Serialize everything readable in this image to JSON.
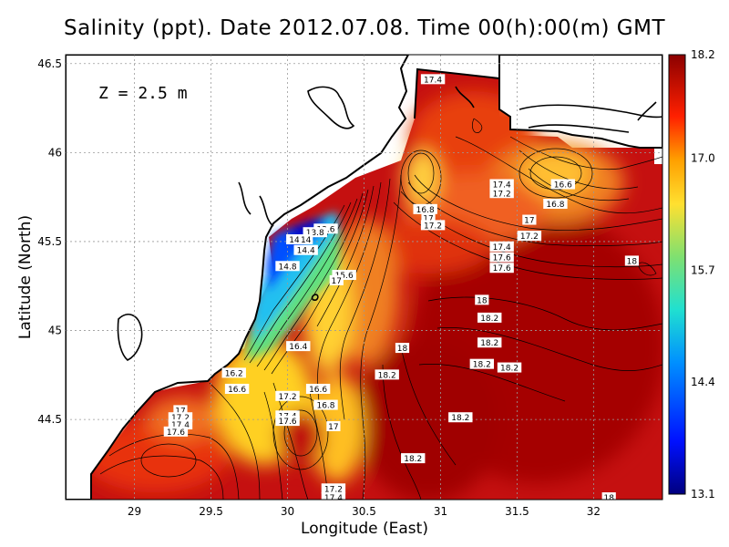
{
  "title": "Salinity (ppt). Date 2012.07.08. Time 00(h):00(m) GMT",
  "depth_label": "Z = 2.5 m",
  "xlabel": "Longitude (East)",
  "ylabel": "Latitude (North)",
  "colors": {
    "land": "#ffffff",
    "coast": "#000000",
    "grid": "#9a9a9a",
    "salinity_low": "#00007f",
    "salinity_high": "#8b0000"
  },
  "chart_data": {
    "type": "heatmap",
    "xlim": [
      28.55,
      32.45
    ],
    "ylim": [
      44.05,
      46.55
    ],
    "x_ticks": [
      {
        "value": 29,
        "label": "29"
      },
      {
        "value": 29.5,
        "label": "29.5"
      },
      {
        "value": 30,
        "label": "30"
      },
      {
        "value": 30.5,
        "label": "30.5"
      },
      {
        "value": 31,
        "label": "31"
      },
      {
        "value": 31.5,
        "label": "31.5"
      },
      {
        "value": 32,
        "label": "32"
      }
    ],
    "y_ticks": [
      {
        "value": 44.5,
        "label": "44.5"
      },
      {
        "value": 45,
        "label": "45"
      },
      {
        "value": 45.5,
        "label": "45.5"
      },
      {
        "value": 46,
        "label": "46"
      },
      {
        "value": 46.5,
        "label": "46.5"
      }
    ],
    "grid": true,
    "colorbar": {
      "range": [
        13.1,
        18.2
      ],
      "tick_labels": [
        {
          "value": 18.2,
          "label": "18.2"
        },
        {
          "value": 17.0,
          "label": "17.0"
        },
        {
          "value": 15.7,
          "label": "15.7"
        },
        {
          "value": 14.4,
          "label": "14.4"
        },
        {
          "value": 13.1,
          "label": "13.1"
        }
      ]
    },
    "contour_labels": [
      {
        "lon": 30.95,
        "lat": 46.41,
        "text": "17.4"
      },
      {
        "lon": 31.4,
        "lat": 45.82,
        "text": "17.4"
      },
      {
        "lon": 31.4,
        "lat": 45.77,
        "text": "17.2"
      },
      {
        "lon": 31.8,
        "lat": 45.82,
        "text": "16.6"
      },
      {
        "lon": 31.75,
        "lat": 45.71,
        "text": "16.8"
      },
      {
        "lon": 31.58,
        "lat": 45.62,
        "text": "17"
      },
      {
        "lon": 31.58,
        "lat": 45.53,
        "text": "17.2"
      },
      {
        "lon": 31.4,
        "lat": 45.47,
        "text": "17.4"
      },
      {
        "lon": 31.4,
        "lat": 45.41,
        "text": "17.6"
      },
      {
        "lon": 31.4,
        "lat": 45.35,
        "text": "17.6"
      },
      {
        "lon": 32.25,
        "lat": 45.39,
        "text": "18"
      },
      {
        "lon": 30.9,
        "lat": 45.68,
        "text": "16.8"
      },
      {
        "lon": 30.92,
        "lat": 45.63,
        "text": "17"
      },
      {
        "lon": 30.95,
        "lat": 45.59,
        "text": "17.2"
      },
      {
        "lon": 30.37,
        "lat": 45.31,
        "text": "15.6"
      },
      {
        "lon": 30.32,
        "lat": 45.28,
        "text": "17"
      },
      {
        "lon": 30.25,
        "lat": 45.57,
        "text": "13.6"
      },
      {
        "lon": 30.18,
        "lat": 45.55,
        "text": "13.8"
      },
      {
        "lon": 30.07,
        "lat": 45.51,
        "text": "14.6"
      },
      {
        "lon": 30.12,
        "lat": 45.51,
        "text": "14"
      },
      {
        "lon": 30.12,
        "lat": 45.45,
        "text": "14.4"
      },
      {
        "lon": 30.0,
        "lat": 45.36,
        "text": "14.8"
      },
      {
        "lon": 31.27,
        "lat": 45.17,
        "text": "18"
      },
      {
        "lon": 31.32,
        "lat": 45.07,
        "text": "18.2"
      },
      {
        "lon": 31.32,
        "lat": 44.93,
        "text": "18.2"
      },
      {
        "lon": 30.75,
        "lat": 44.9,
        "text": "18"
      },
      {
        "lon": 31.27,
        "lat": 44.81,
        "text": "18.2"
      },
      {
        "lon": 31.45,
        "lat": 44.79,
        "text": "18.2"
      },
      {
        "lon": 30.65,
        "lat": 44.75,
        "text": "18.2"
      },
      {
        "lon": 30.07,
        "lat": 44.91,
        "text": "16.4"
      },
      {
        "lon": 29.65,
        "lat": 44.76,
        "text": "16.2"
      },
      {
        "lon": 29.67,
        "lat": 44.67,
        "text": "16.6"
      },
      {
        "lon": 30.2,
        "lat": 44.67,
        "text": "16.6"
      },
      {
        "lon": 30.25,
        "lat": 44.58,
        "text": "16.8"
      },
      {
        "lon": 30.0,
        "lat": 44.63,
        "text": "17.2"
      },
      {
        "lon": 30.0,
        "lat": 44.52,
        "text": "17.4"
      },
      {
        "lon": 30.0,
        "lat": 44.49,
        "text": "17.6"
      },
      {
        "lon": 30.3,
        "lat": 44.46,
        "text": "17"
      },
      {
        "lon": 31.13,
        "lat": 44.51,
        "text": "18.2"
      },
      {
        "lon": 30.82,
        "lat": 44.28,
        "text": "18.2"
      },
      {
        "lon": 29.3,
        "lat": 44.55,
        "text": "17"
      },
      {
        "lon": 29.3,
        "lat": 44.51,
        "text": "17.2"
      },
      {
        "lon": 29.3,
        "lat": 44.47,
        "text": "17.4"
      },
      {
        "lon": 29.27,
        "lat": 44.43,
        "text": "17.6"
      },
      {
        "lon": 30.3,
        "lat": 44.11,
        "text": "17.2"
      },
      {
        "lon": 30.3,
        "lat": 44.06,
        "text": "17.4"
      },
      {
        "lon": 32.1,
        "lat": 44.06,
        "text": "18"
      }
    ]
  }
}
